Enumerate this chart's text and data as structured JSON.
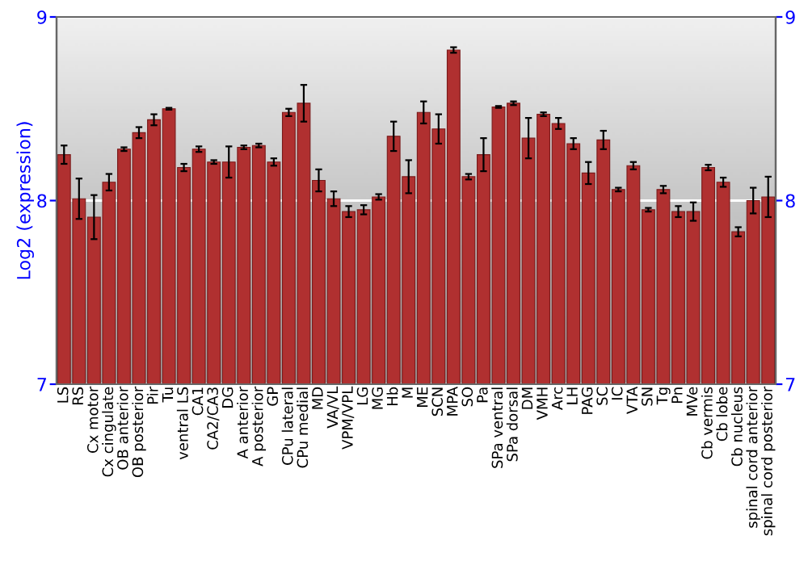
{
  "chart_data": {
    "type": "bar",
    "ylabel": "Log2 (expression)",
    "categories": [
      "LS",
      "RS",
      "Cx motor",
      "Cx cingulate",
      "OB anterior",
      "OB posterior",
      "Pir",
      "Tu",
      "ventral LS",
      "CA1",
      "CA2/CA3",
      "DG",
      "A anterior",
      "A posterior",
      "GP",
      "CPu lateral",
      "CPu medial",
      "MD",
      "VA/VL",
      "VPM/VPL",
      "LG",
      "MG",
      "Hb",
      "M",
      "ME",
      "SCN",
      "MPA",
      "SO",
      "Pa",
      "SPa ventral",
      "SPa dorsal",
      "DM",
      "VMH",
      "Arc",
      "LH",
      "PAG",
      "SC",
      "IC",
      "VTA",
      "SN",
      "Tg",
      "Pn",
      "MVe",
      "Cb vermis",
      "Cb lobe",
      "Cb nucleus",
      "spinal cord anterior",
      "spinal cord posterior"
    ],
    "values": [
      8.25,
      8.01,
      7.91,
      8.1,
      8.28,
      8.37,
      8.44,
      8.5,
      8.18,
      8.28,
      8.21,
      8.21,
      8.29,
      8.3,
      8.21,
      8.48,
      8.53,
      8.11,
      8.01,
      7.94,
      7.95,
      8.02,
      8.35,
      8.13,
      8.48,
      8.39,
      8.82,
      8.13,
      8.25,
      8.51,
      8.53,
      8.34,
      8.47,
      8.42,
      8.31,
      8.15,
      8.33,
      8.06,
      8.19,
      7.95,
      8.06,
      7.94,
      7.94,
      8.18,
      8.1,
      7.83,
      8.0,
      8.02
    ],
    "errors": [
      0.05,
      0.11,
      0.12,
      0.045,
      0.01,
      0.03,
      0.03,
      0.005,
      0.02,
      0.015,
      0.01,
      0.085,
      0.01,
      0.01,
      0.02,
      0.02,
      0.1,
      0.06,
      0.04,
      0.03,
      0.025,
      0.015,
      0.08,
      0.09,
      0.06,
      0.08,
      0.015,
      0.015,
      0.09,
      0.005,
      0.01,
      0.11,
      0.01,
      0.03,
      0.03,
      0.06,
      0.05,
      0.01,
      0.02,
      0.01,
      0.02,
      0.03,
      0.05,
      0.015,
      0.025,
      0.025,
      0.07,
      0.11
    ],
    "color": "#b03030",
    "ylim": [
      7,
      9
    ],
    "yticks": [
      7,
      8,
      9
    ],
    "y2lim": [
      7,
      9
    ],
    "y2ticks": [
      7,
      8,
      9
    ],
    "grid": "y"
  }
}
